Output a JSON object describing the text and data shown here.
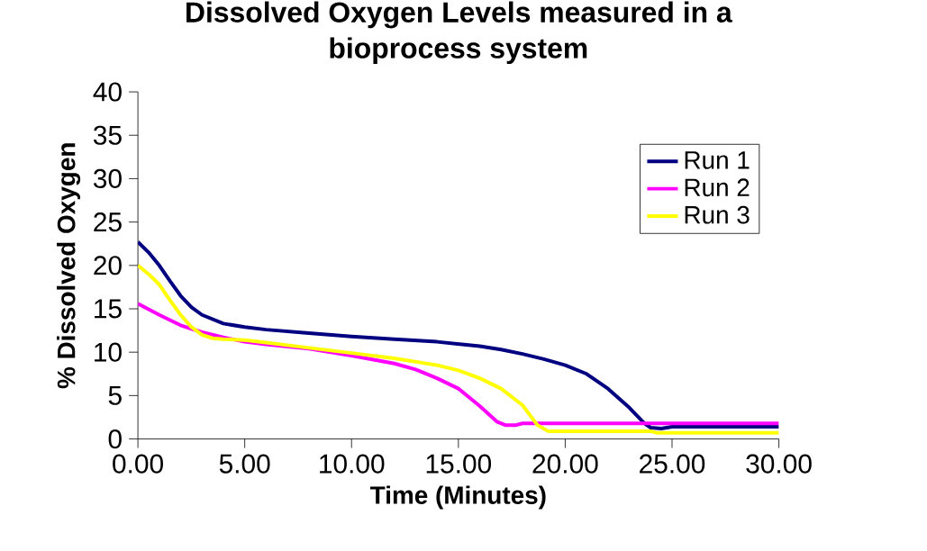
{
  "chart_data": {
    "type": "line",
    "title": "Dissolved Oxygen Levels measured in a bioprocess system",
    "xlabel": "Time (Minutes)",
    "ylabel": "% Dissolved Oxygen",
    "xlim": [
      0,
      30
    ],
    "xticks": [
      {
        "value": 0,
        "label": "0.00"
      },
      {
        "value": 5,
        "label": "5.00"
      },
      {
        "value": 10,
        "label": "10.00"
      },
      {
        "value": 15,
        "label": "15.00"
      },
      {
        "value": 20,
        "label": "20.00"
      },
      {
        "value": 25,
        "label": "25.00"
      },
      {
        "value": 30,
        "label": "30.00"
      }
    ],
    "ylim": [
      0,
      40
    ],
    "yticks": [
      0,
      5,
      10,
      15,
      20,
      25,
      30,
      35,
      40
    ],
    "grid": false,
    "legend": "top right",
    "marker": "none",
    "line_style": "solid",
    "series": [
      {
        "name": "Run 1",
        "color": "#000080",
        "x": [
          0,
          0.5,
          1,
          1.5,
          2,
          2.5,
          3,
          4,
          5,
          6,
          8,
          10,
          12,
          14,
          16,
          17,
          18,
          19,
          20,
          21,
          22,
          23,
          23.7,
          24,
          24.5,
          25,
          30
        ],
        "values": [
          22.7,
          21.5,
          20,
          18.2,
          16.5,
          15.2,
          14.3,
          13.3,
          12.9,
          12.6,
          12.2,
          11.8,
          11.5,
          11.2,
          10.7,
          10.3,
          9.8,
          9.2,
          8.5,
          7.5,
          5.8,
          3.6,
          1.8,
          1.3,
          1.2,
          1.4,
          1.4
        ]
      },
      {
        "name": "Run 2",
        "color": "#ff00ff",
        "x": [
          0,
          1,
          2,
          3,
          4,
          5,
          6,
          8,
          10,
          12,
          13,
          14,
          15,
          16,
          16.8,
          17.2,
          17.7,
          18,
          30
        ],
        "values": [
          15.6,
          14.3,
          13.1,
          12.3,
          11.7,
          11.2,
          10.9,
          10.4,
          9.6,
          8.7,
          8.0,
          7.0,
          5.8,
          3.8,
          2.0,
          1.6,
          1.6,
          1.8,
          1.8
        ]
      },
      {
        "name": "Run 3",
        "color": "#ffff00",
        "x": [
          0,
          0.5,
          1,
          1.5,
          2,
          2.5,
          3,
          3.5,
          4,
          5,
          6,
          8,
          10,
          12,
          14,
          15,
          16,
          17,
          18,
          18.7,
          19.2,
          24,
          24.3,
          30
        ],
        "values": [
          20,
          19,
          17.8,
          16,
          14.3,
          12.9,
          12,
          11.6,
          11.5,
          11.4,
          11.1,
          10.5,
          9.9,
          9.3,
          8.5,
          7.9,
          7.0,
          5.8,
          3.9,
          1.6,
          0.9,
          0.9,
          0.7,
          0.7
        ]
      }
    ]
  }
}
